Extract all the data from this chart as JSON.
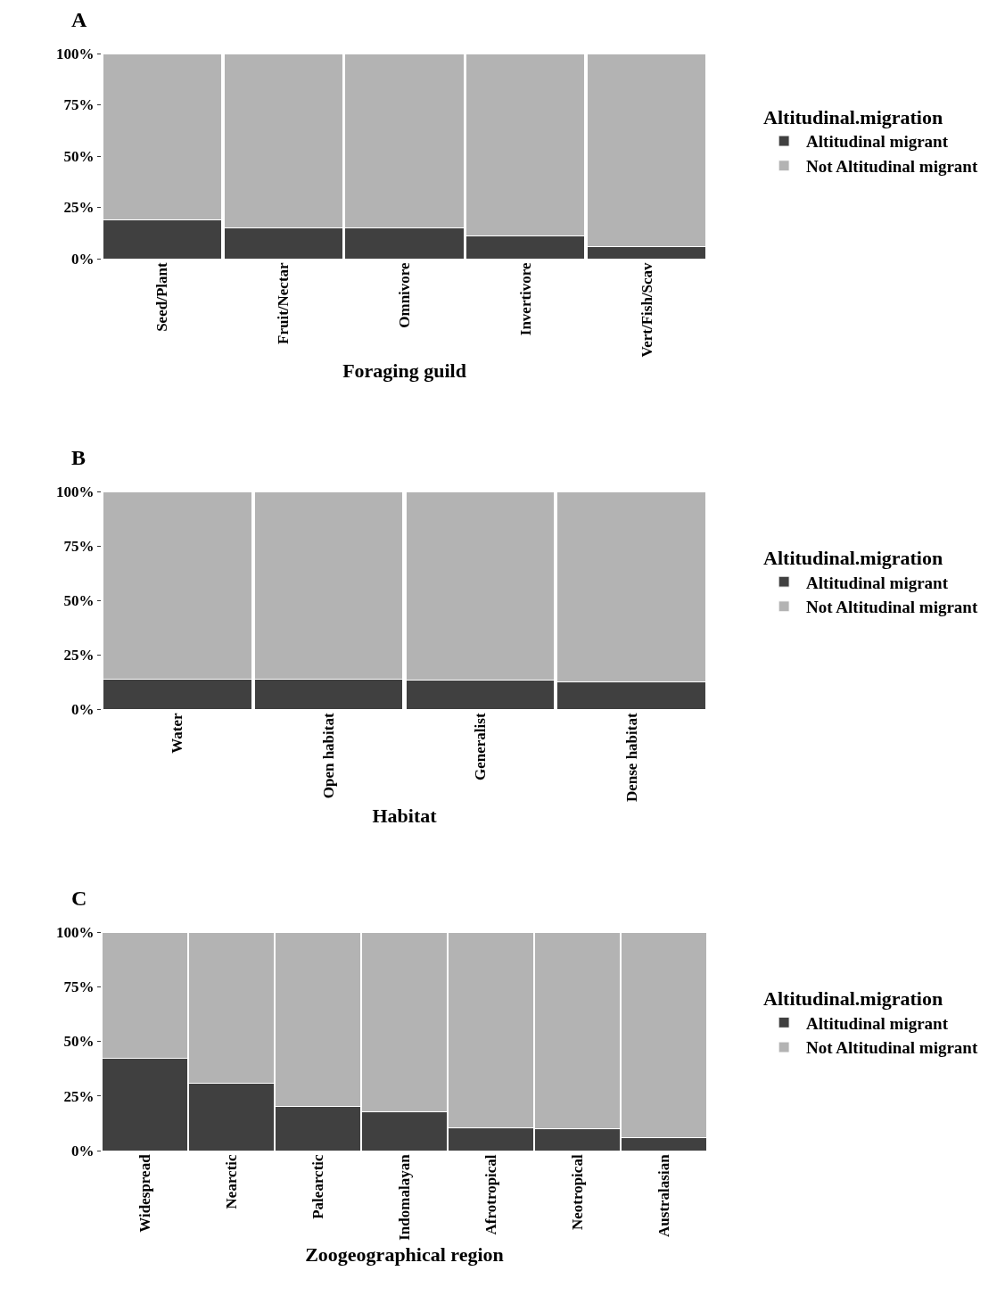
{
  "chart_data": [
    {
      "type": "bar",
      "stacked": true,
      "title": "A",
      "xlabel": "Foraging guild",
      "legend_title": "Altitudinal.migration",
      "legend": "right",
      "grid": false,
      "categories": [
        "Seed/Plant",
        "Fruit/Nectar",
        "Omnivore",
        "Invertivore",
        "Vert/Fish/Scav"
      ],
      "ylim": [
        0,
        100
      ],
      "yticks": [
        {
          "value": 0,
          "label": "0%"
        },
        {
          "value": 25,
          "label": "25%"
        },
        {
          "value": 50,
          "label": "50%"
        },
        {
          "value": 75,
          "label": "75%"
        },
        {
          "value": 100,
          "label": "100%"
        }
      ],
      "series": [
        {
          "name": "Altitudinal migrant",
          "color": "#404040",
          "values": [
            18.7,
            15.2,
            14.8,
            11.3,
            5.7
          ]
        },
        {
          "name": "Not Altitudinal migrant",
          "color": "#b3b3b3",
          "values": [
            81.3,
            84.8,
            85.2,
            88.7,
            94.3
          ]
        }
      ]
    },
    {
      "type": "bar",
      "stacked": true,
      "title": "B",
      "xlabel": "Habitat",
      "legend_title": "Altitudinal.migration",
      "legend": "right",
      "grid": false,
      "categories": [
        "Water",
        "Open habitat",
        "Generalist",
        "Dense habitat"
      ],
      "ylim": [
        0,
        100
      ],
      "yticks": [
        {
          "value": 0,
          "label": "0%"
        },
        {
          "value": 25,
          "label": "25%"
        },
        {
          "value": 50,
          "label": "50%"
        },
        {
          "value": 75,
          "label": "75%"
        },
        {
          "value": 100,
          "label": "100%"
        }
      ],
      "series": [
        {
          "name": "Altitudinal migrant",
          "color": "#404040",
          "values": [
            13.9,
            13.9,
            13.5,
            12.7
          ]
        },
        {
          "name": "Not Altitudinal migrant",
          "color": "#b3b3b3",
          "values": [
            86.1,
            86.1,
            86.5,
            87.3
          ]
        }
      ]
    },
    {
      "type": "bar",
      "stacked": true,
      "title": "C",
      "xlabel": "Zoogeographical region",
      "legend_title": "Altitudinal.migration",
      "legend": "right",
      "grid": false,
      "categories": [
        "Widespread",
        "Nearctic",
        "Palearctic",
        "Indomalayan",
        "Afrotropical",
        "Neotropical",
        "Australasian"
      ],
      "ylim": [
        0,
        100
      ],
      "yticks": [
        {
          "value": 0,
          "label": "0%"
        },
        {
          "value": 25,
          "label": "25%"
        },
        {
          "value": 50,
          "label": "50%"
        },
        {
          "value": 75,
          "label": "75%"
        },
        {
          "value": 100,
          "label": "100%"
        }
      ],
      "series": [
        {
          "name": "Altitudinal migrant",
          "color": "#404040",
          "values": [
            42.4,
            31.0,
            20.4,
            17.6,
            10.6,
            9.8,
            6.1
          ]
        },
        {
          "name": "Not Altitudinal migrant",
          "color": "#b3b3b3",
          "values": [
            57.6,
            69.0,
            79.6,
            82.4,
            89.4,
            90.2,
            93.9
          ]
        }
      ]
    }
  ]
}
